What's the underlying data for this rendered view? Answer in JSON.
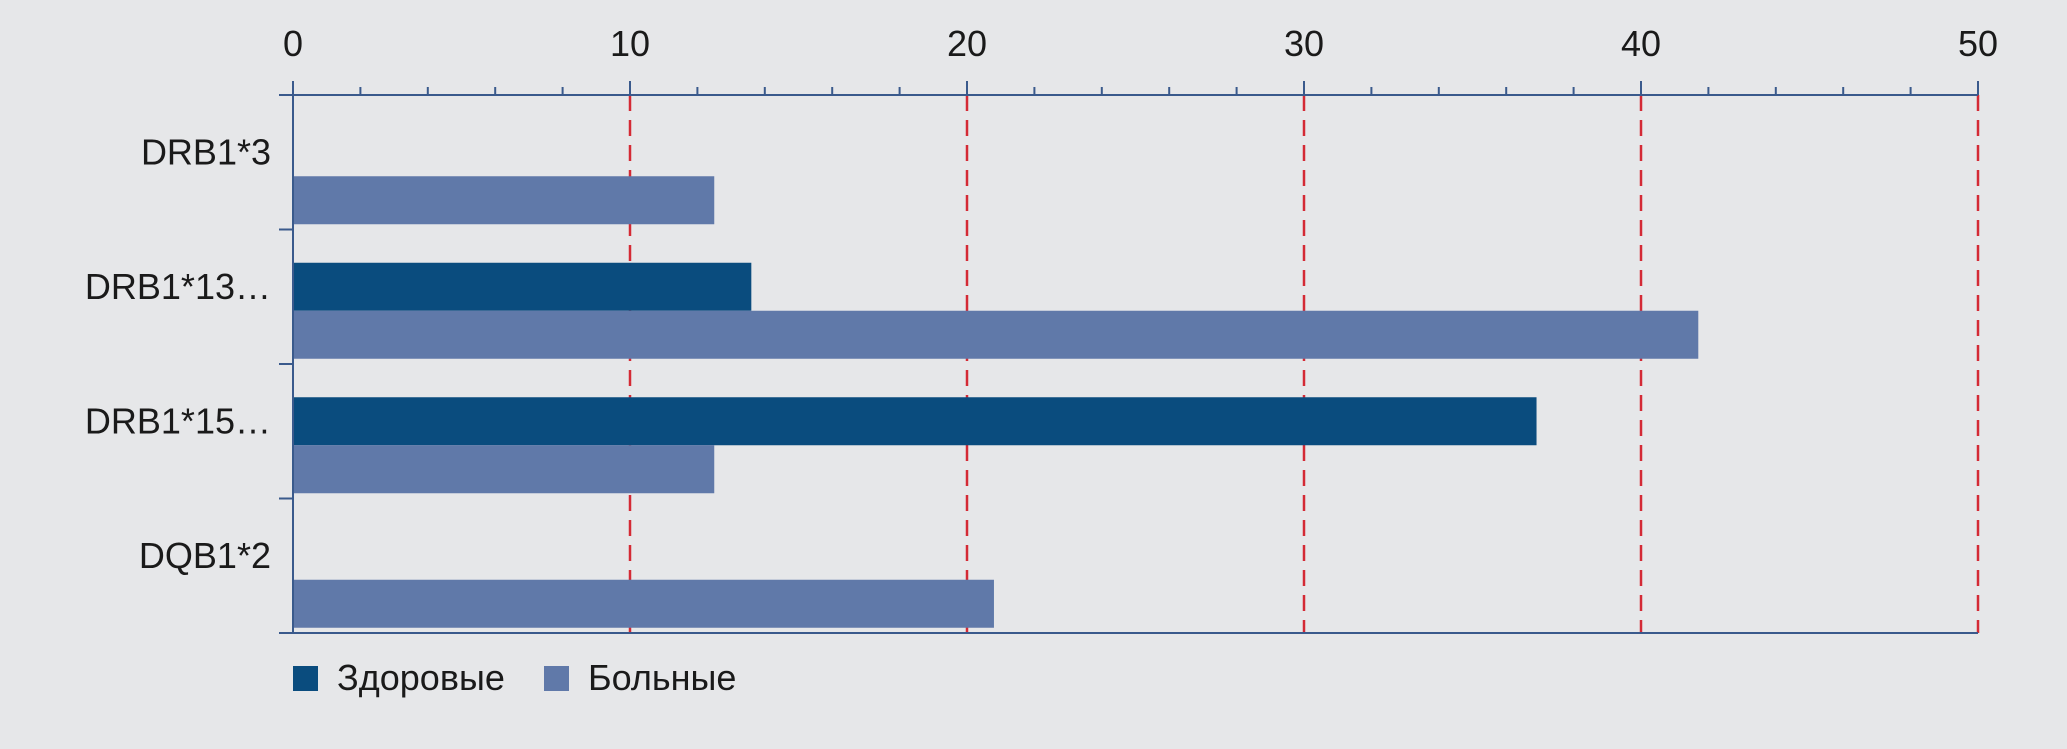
{
  "chart_data": {
    "type": "bar",
    "orientation": "horizontal",
    "categories": [
      "DRB1*3",
      "DRB1*13…",
      "DRB1*15…",
      "DQB1*2"
    ],
    "series": [
      {
        "name": "Здоровые",
        "color": "#0a4c7e",
        "values": [
          0,
          13.6,
          36.9,
          0
        ]
      },
      {
        "name": "Больные",
        "color": "#6079a9",
        "values": [
          12.5,
          41.7,
          12.5,
          20.8
        ]
      }
    ],
    "xlim": [
      0,
      50
    ],
    "x_ticks": [
      "0",
      "10",
      "20",
      "30",
      "40",
      "50"
    ],
    "axis_position": "top",
    "grid": "dashed red vertical lines at major ticks",
    "grid_color": "#d42a35",
    "axis_color": "#3a5a8c",
    "background": "#e6e7e9",
    "legend_placement": "bottom-left"
  }
}
